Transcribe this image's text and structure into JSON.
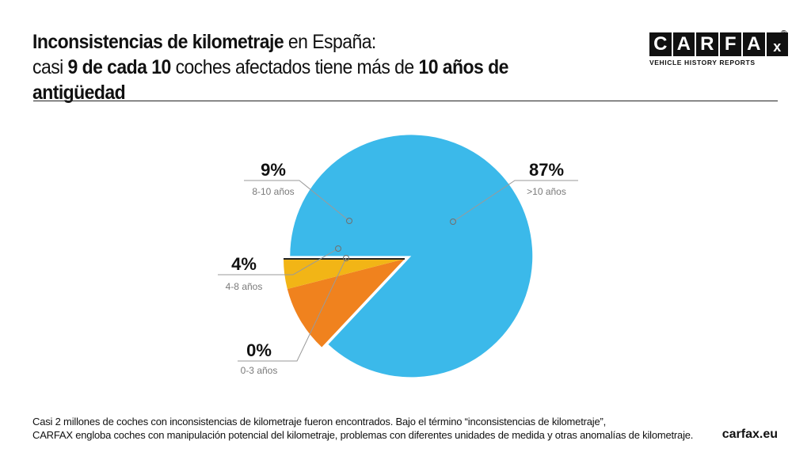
{
  "title": {
    "line1_bold": "Inconsistencias de kilometraje",
    "line1_rest": " en España:",
    "line2_part1": "casi ",
    "line2_bold1": "9 de cada 10",
    "line2_part2": " coches afectados tiene más de ",
    "line2_bold2": "10 años de antigüedad"
  },
  "logo": {
    "letters": [
      "C",
      "A",
      "R",
      "F",
      "A",
      "x"
    ],
    "registered": "®",
    "tagline": "VEHICLE HISTORY REPORTS"
  },
  "chart_data": {
    "type": "pie",
    "slices": [
      {
        "label": ">10 años",
        "value": 87,
        "value_label": "87%",
        "color": "#3BB9EA"
      },
      {
        "label": "8-10 años",
        "value": 9,
        "value_label": "9%",
        "color": "#F0821E"
      },
      {
        "label": "4-8 años",
        "value": 4,
        "value_label": "4%",
        "color": "#F2B516"
      },
      {
        "label": "0-3 años",
        "value": 0,
        "value_label": "0%",
        "color": "#222222"
      }
    ],
    "exploded": [
      ">10 años"
    ]
  },
  "footer": {
    "line1": "Casi 2 millones de coches con inconsistencias de kilometraje fueron encontrados. Bajo el término “inconsistencias de kilometraje”,",
    "line2": "CARFAX engloba coches con manipulación potencial del kilometraje, problemas con diferentes unidades de medida y otras anomalías de kilometraje."
  },
  "site": "carfax.eu"
}
